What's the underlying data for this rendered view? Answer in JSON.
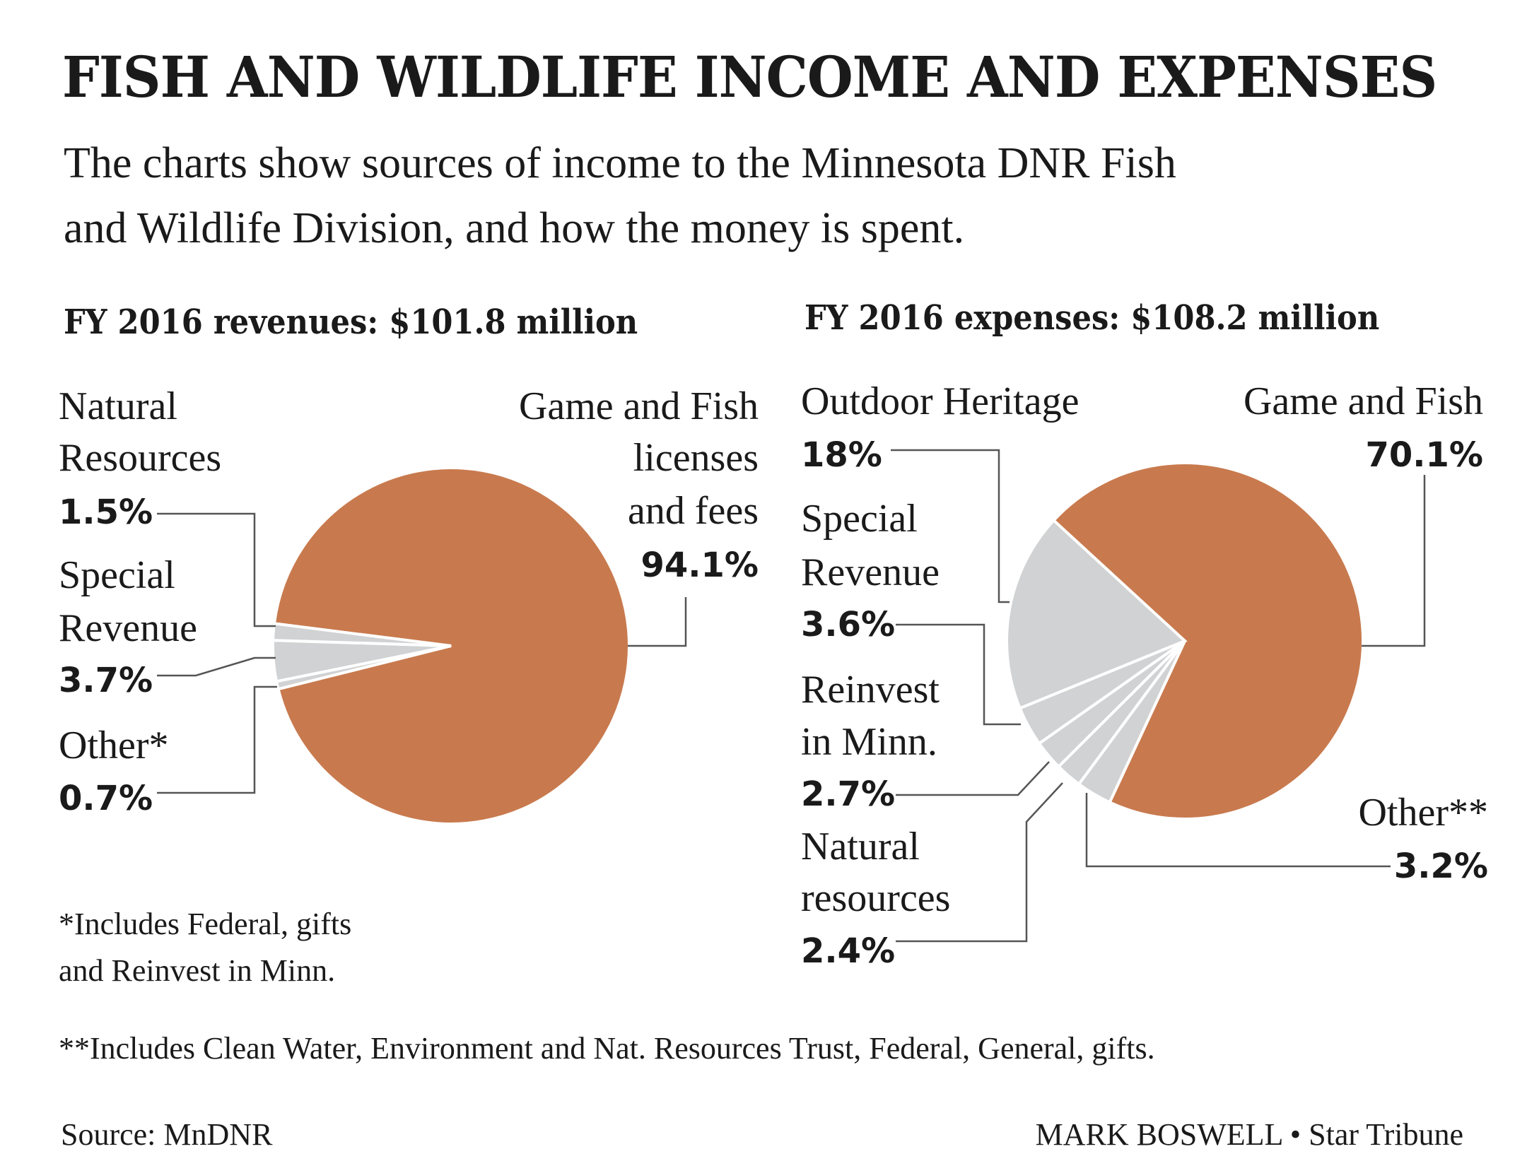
{
  "title": "FISH AND WILDLIFE INCOME AND EXPENSES",
  "subtitle": [
    "The charts show sources of income to the Minnesota DNR Fish",
    "and Wildlife Division, and how the money is spent."
  ],
  "colors": {
    "primary": "#c87a4e",
    "other": "#d0d2d3",
    "leader": "#555555"
  },
  "chart_data": [
    {
      "type": "pie",
      "title": "FY 2016 revenues: $101.8 million",
      "slices": [
        {
          "label": [
            "Game and Fish",
            "licenses",
            "and fees"
          ],
          "pct_label": "94.1%",
          "value": 94.1,
          "color": "#c87a4e"
        },
        {
          "label": [
            "Other*"
          ],
          "pct_label": "0.7%",
          "value": 0.7,
          "color": "#d0d2d3"
        },
        {
          "label": [
            "Special",
            "Revenue"
          ],
          "pct_label": "3.7%",
          "value": 3.7,
          "color": "#d0d2d3"
        },
        {
          "label": [
            "Natural",
            "Resources"
          ],
          "pct_label": "1.5%",
          "value": 1.5,
          "color": "#d0d2d3"
        }
      ]
    },
    {
      "type": "pie",
      "title": "FY 2016 expenses: $108.2 million",
      "slices": [
        {
          "label": [
            "Game and Fish"
          ],
          "pct_label": "70.1%",
          "value": 70.1,
          "color": "#c87a4e"
        },
        {
          "label": [
            "Other**"
          ],
          "pct_label": "3.2%",
          "value": 3.2,
          "color": "#d0d2d3"
        },
        {
          "label": [
            "Natural",
            "resources"
          ],
          "pct_label": "2.4%",
          "value": 2.4,
          "color": "#d0d2d3"
        },
        {
          "label": [
            "Reinvest",
            "in Minn."
          ],
          "pct_label": "2.7%",
          "value": 2.7,
          "color": "#d0d2d3"
        },
        {
          "label": [
            "Special",
            "Revenue"
          ],
          "pct_label": "3.6%",
          "value": 3.6,
          "color": "#d0d2d3"
        },
        {
          "label": [
            "Outdoor Heritage"
          ],
          "pct_label": "18%",
          "value": 18,
          "color": "#d0d2d3"
        }
      ]
    }
  ],
  "footnotes": {
    "left": [
      "*Includes Federal, gifts",
      "and Reinvest in Minn."
    ],
    "bottom": "**Includes Clean Water, Environment and Nat. Resources Trust, Federal, General, gifts."
  },
  "source": "Source: MnDNR",
  "credit": "MARK BOSWELL • Star Tribune"
}
